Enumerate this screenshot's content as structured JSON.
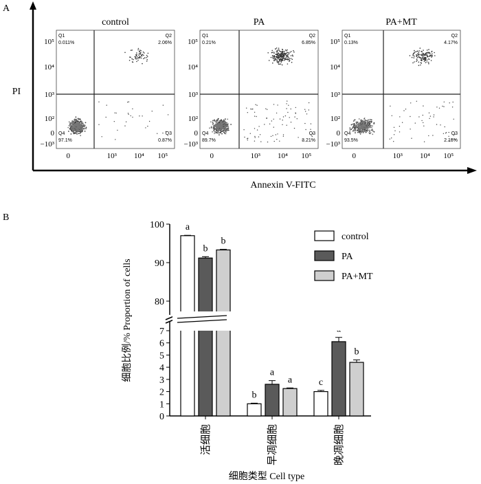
{
  "chart_data": [
    {
      "type": "scatter",
      "panel_label": "A",
      "xlabel": "Annexin V-FITC",
      "ylabel": "PI",
      "x_ticks": [
        "0",
        "10³",
        "10⁴",
        "10⁵"
      ],
      "y_ticks": [
        "10⁵",
        "10⁴",
        "10³",
        "10²",
        "0",
        "−10³"
      ],
      "plots": [
        {
          "title": "control",
          "quadrants": [
            {
              "name": "Q1",
              "value": "0.011%"
            },
            {
              "name": "Q2",
              "value": "2.06%"
            },
            {
              "name": "Q3",
              "value": "0.87%"
            },
            {
              "name": "Q4",
              "value": "97.1%"
            }
          ]
        },
        {
          "title": "PA",
          "quadrants": [
            {
              "name": "Q1",
              "value": "0.21%"
            },
            {
              "name": "Q2",
              "value": "6.85%"
            },
            {
              "name": "Q3",
              "value": "3.21%"
            },
            {
              "name": "Q4",
              "value": "89.7%"
            }
          ]
        },
        {
          "title": "PA+MT",
          "quadrants": [
            {
              "name": "Q1",
              "value": "0.13%"
            },
            {
              "name": "Q2",
              "value": "4.17%"
            },
            {
              "name": "Q3",
              "value": "2.18%"
            },
            {
              "name": "Q4",
              "value": "93.5%"
            }
          ]
        }
      ]
    },
    {
      "type": "bar",
      "panel_label": "B",
      "xlabel": "细胞类型 Cell type",
      "ylabel": "细胞比例/% Proportion of cells",
      "categories": [
        "活细胞",
        "早凋细胞",
        "晚凋细胞"
      ],
      "y_axis_break": true,
      "y_ticks_lower": [
        0,
        1,
        2,
        3,
        4,
        5,
        6,
        7
      ],
      "y_ticks_upper": [
        80,
        90,
        100
      ],
      "legend_position": "top-right",
      "series": [
        {
          "name": "control",
          "color": "#ffffff",
          "values": [
            97.0,
            1.0,
            2.0
          ],
          "errors": [
            0.1,
            0.05,
            0.1
          ],
          "letters": [
            "a",
            "b",
            "c"
          ]
        },
        {
          "name": "PA",
          "color": "#5a5a5a",
          "values": [
            91.2,
            2.6,
            6.1
          ],
          "errors": [
            0.35,
            0.3,
            0.35
          ],
          "letters": [
            "b",
            "a",
            "a"
          ]
        },
        {
          "name": "PA+MT",
          "color": "#cfcfcf",
          "values": [
            93.3,
            2.25,
            4.4
          ],
          "errors": [
            0.15,
            0.05,
            0.2
          ],
          "letters": [
            "b",
            "a",
            "b"
          ]
        }
      ]
    }
  ]
}
